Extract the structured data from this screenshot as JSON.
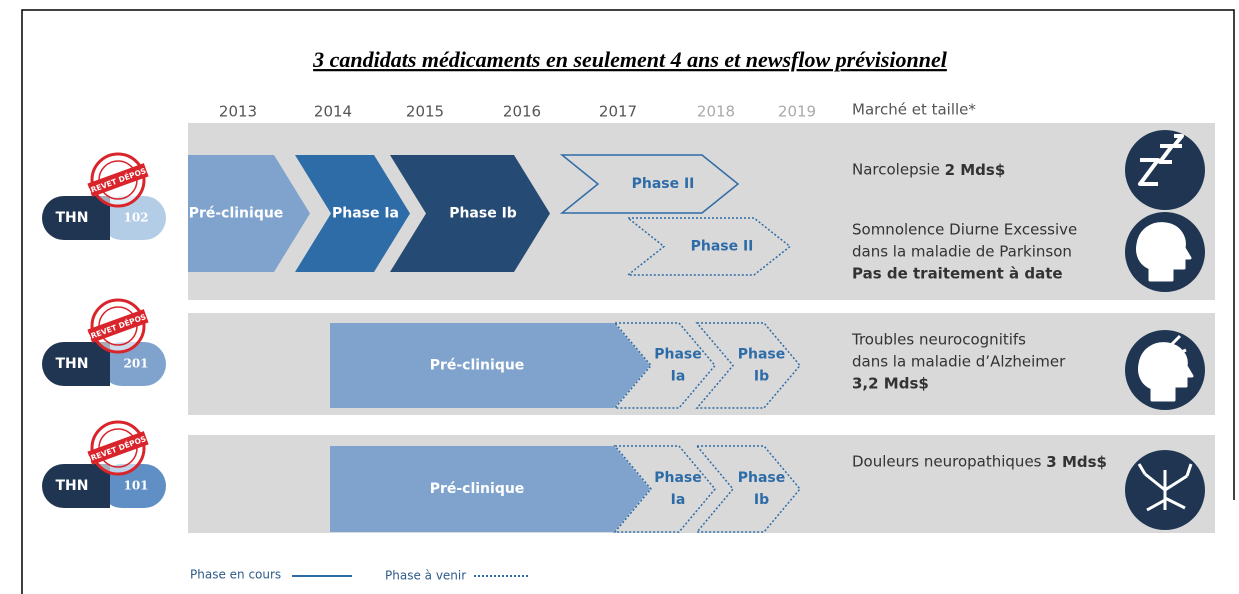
{
  "title": "3 candidats médicaments en seulement 4 ans et newsflow prévisionnel",
  "years": [
    "2013",
    "2014",
    "2015",
    "2016",
    "2017",
    "2018",
    "2019"
  ],
  "market_header": "Marché et taille*",
  "pipelines": [
    {
      "code": "THN",
      "number": "102",
      "stamp": "BREVET DÉPOSÉ",
      "phases": [
        {
          "lines": [
            "Pré-clinique"
          ]
        },
        {
          "lines": [
            "Phase Ia"
          ]
        },
        {
          "lines": [
            "Phase Ib"
          ]
        },
        {
          "lines": [
            "Phase II"
          ]
        },
        {
          "lines": [
            "Phase II"
          ]
        }
      ],
      "indications": [
        {
          "lines": [
            "Narcolepsie"
          ],
          "bold": "2 Mds$"
        },
        {
          "lines": [
            "Somnolence Diurne Excessive",
            "dans la maladie de Parkinson"
          ],
          "bold": "Pas de traitement à date"
        }
      ]
    },
    {
      "code": "THN",
      "number": "201",
      "stamp": "BREVET DÉPOSÉ",
      "phases": [
        {
          "lines": [
            "Pré-clinique"
          ]
        },
        {
          "lines": [
            "Phase",
            "Ia"
          ]
        },
        {
          "lines": [
            "Phase",
            "Ib"
          ]
        }
      ],
      "indications": [
        {
          "lines": [
            "Troubles neurocognitifs",
            "dans la maladie d’Alzheimer"
          ],
          "bold": "3,2 Mds$"
        }
      ]
    },
    {
      "code": "THN",
      "number": "101",
      "stamp": "BREVET DÉPOSÉ",
      "phases": [
        {
          "lines": [
            "Pré-clinique"
          ]
        },
        {
          "lines": [
            "Phase",
            "Ia"
          ]
        },
        {
          "lines": [
            "Phase",
            "Ib"
          ]
        }
      ],
      "indications": [
        {
          "lines": [
            "Douleurs neuropathiques"
          ],
          "bold": "3 Mds$"
        }
      ]
    }
  ],
  "legend": [
    "Phase en cours",
    "Phase à venir"
  ]
}
